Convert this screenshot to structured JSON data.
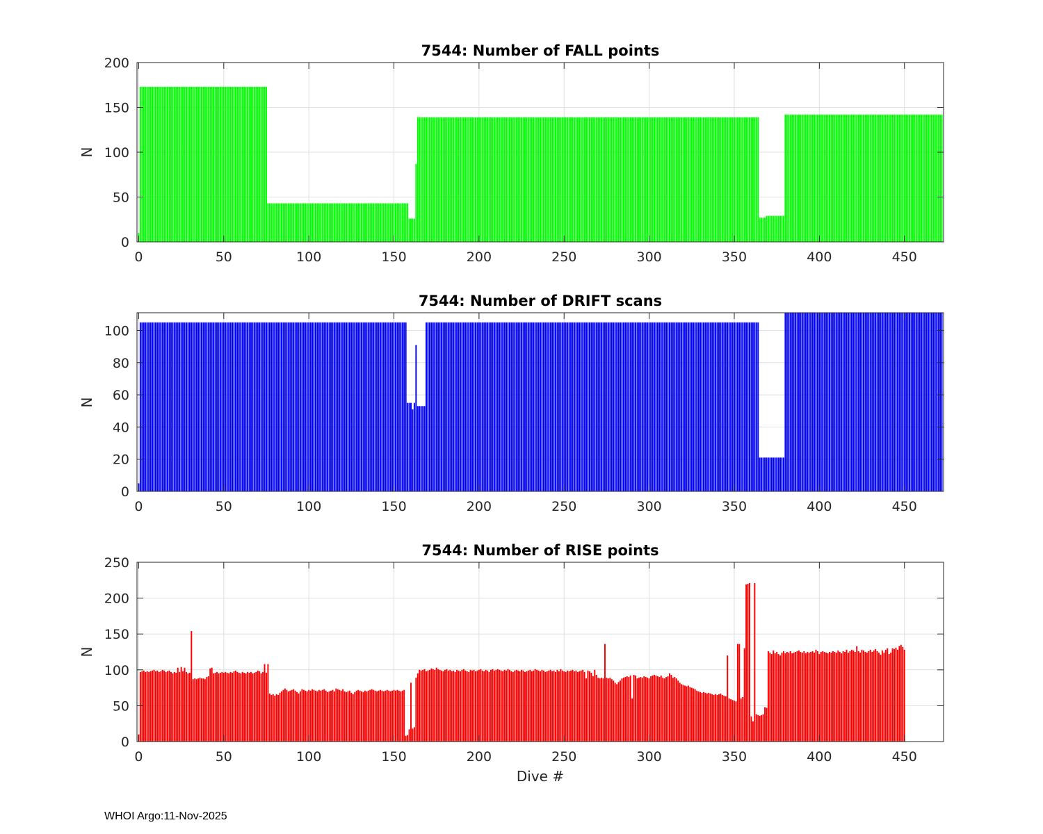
{
  "figure": {
    "footer": "WHOI Argo:11-Nov-2025"
  },
  "chart_data": [
    {
      "type": "bar",
      "title": "7544: Number of FALL points",
      "xlabel": "",
      "ylabel": "N",
      "xlim": [
        -1,
        473
      ],
      "ylim": [
        0,
        200
      ],
      "xticks": [
        0,
        50,
        100,
        150,
        200,
        250,
        300,
        350,
        400,
        450
      ],
      "yticks": [
        0,
        50,
        100,
        150,
        200
      ],
      "color": "#00ff00",
      "bar_width": 0.8,
      "segments": [
        {
          "from": 0,
          "to": 0,
          "value": 10
        },
        {
          "from": 1,
          "to": 75,
          "value": 173
        },
        {
          "from": 76,
          "to": 158,
          "value": 43
        },
        {
          "from": 159,
          "to": 162,
          "value": 26
        },
        {
          "from": 163,
          "to": 163,
          "value": 87
        },
        {
          "from": 164,
          "to": 364,
          "value": 139
        },
        {
          "from": 365,
          "to": 368,
          "value": 27
        },
        {
          "from": 369,
          "to": 379,
          "value": 29
        },
        {
          "from": 380,
          "to": 472,
          "value": 142
        }
      ]
    },
    {
      "type": "bar",
      "title": "7544: Number of DRIFT scans",
      "xlabel": "",
      "ylabel": "N",
      "xlim": [
        -1,
        473
      ],
      "ylim": [
        0,
        111
      ],
      "xticks": [
        0,
        50,
        100,
        150,
        200,
        250,
        300,
        350,
        400,
        450
      ],
      "yticks": [
        0,
        20,
        40,
        60,
        80,
        100
      ],
      "color": "#0000ff",
      "bar_width": 0.8,
      "segments": [
        {
          "from": 0,
          "to": 0,
          "value": 5
        },
        {
          "from": 1,
          "to": 157,
          "value": 105
        },
        {
          "from": 158,
          "to": 160,
          "value": 55
        },
        {
          "from": 161,
          "to": 161,
          "value": 51
        },
        {
          "from": 162,
          "to": 162,
          "value": 55
        },
        {
          "from": 163,
          "to": 163,
          "value": 91
        },
        {
          "from": 164,
          "to": 168,
          "value": 53
        },
        {
          "from": 169,
          "to": 364,
          "value": 105
        },
        {
          "from": 365,
          "to": 379,
          "value": 21
        },
        {
          "from": 380,
          "to": 472,
          "value": 111
        }
      ]
    },
    {
      "type": "bar",
      "title": "7544: Number of RISE points",
      "xlabel": "Dive #",
      "ylabel": "N",
      "xlim": [
        -1,
        473
      ],
      "ylim": [
        0,
        250
      ],
      "xticks": [
        0,
        50,
        100,
        150,
        200,
        250,
        300,
        350,
        400,
        450
      ],
      "yticks": [
        0,
        50,
        100,
        150,
        200,
        250
      ],
      "color": "#ff0000",
      "bar_width": 0.8,
      "values": [
        10,
        97,
        98,
        99,
        97,
        98,
        97,
        98,
        99,
        100,
        98,
        99,
        97,
        98,
        100,
        99,
        97,
        98,
        99,
        97,
        95,
        97,
        96,
        103,
        97,
        104,
        98,
        103,
        97,
        95,
        96,
        154,
        87,
        88,
        87,
        88,
        89,
        88,
        88,
        87,
        90,
        91,
        102,
        103,
        95,
        96,
        97,
        95,
        96,
        97,
        96,
        97,
        96,
        95,
        97,
        96,
        98,
        99,
        97,
        96,
        95,
        97,
        96,
        95,
        97,
        96,
        97,
        95,
        96,
        97,
        99,
        98,
        95,
        97,
        108,
        96,
        108,
        67,
        65,
        66,
        64,
        66,
        65,
        68,
        70,
        72,
        74,
        72,
        70,
        71,
        72,
        73,
        71,
        69,
        67,
        70,
        73,
        72,
        71,
        70,
        72,
        71,
        73,
        72,
        71,
        70,
        72,
        71,
        72,
        73,
        71,
        69,
        70,
        71,
        72,
        70,
        74,
        73,
        72,
        71,
        73,
        70,
        69,
        70,
        71,
        68,
        66,
        69,
        71,
        72,
        71,
        70,
        69,
        71,
        70,
        71,
        72,
        73,
        72,
        71,
        70,
        71,
        72,
        71,
        70,
        71,
        72,
        71,
        70,
        71,
        72,
        71,
        72,
        71,
        70,
        71,
        72,
        8,
        9,
        17,
        82,
        18,
        20,
        89,
        95,
        100,
        99,
        100,
        101,
        98,
        99,
        100,
        102,
        101,
        100,
        103,
        101,
        100,
        99,
        98,
        100,
        101,
        99,
        100,
        98,
        99,
        97,
        100,
        99,
        98,
        100,
        101,
        99,
        98,
        97,
        100,
        99,
        100,
        98,
        99,
        100,
        101,
        99,
        98,
        100,
        99,
        97,
        100,
        101,
        99,
        100,
        101,
        100,
        99,
        98,
        100,
        99,
        101,
        100,
        98,
        97,
        99,
        100,
        99,
        98,
        100,
        99,
        97,
        98,
        99,
        100,
        98,
        99,
        101,
        100,
        99,
        98,
        100,
        99,
        97,
        98,
        99,
        100,
        98,
        99,
        97,
        100,
        98,
        101,
        99,
        98,
        97,
        99,
        98,
        99,
        100,
        98,
        99,
        97,
        98,
        99,
        100,
        97,
        88,
        99,
        98,
        96,
        91,
        100,
        93,
        89,
        88,
        89,
        88,
        136,
        89,
        88,
        89,
        87,
        85,
        82,
        80,
        83,
        85,
        88,
        89,
        90,
        91,
        90,
        92,
        60,
        93,
        92,
        88,
        89,
        90,
        89,
        91,
        90,
        89,
        88,
        91,
        92,
        93,
        92,
        91,
        90,
        92,
        89,
        88,
        90,
        91,
        95,
        93,
        89,
        90,
        88,
        85,
        82,
        80,
        79,
        78,
        77,
        78,
        76,
        75,
        74,
        73,
        71,
        70,
        69,
        68,
        69,
        68,
        67,
        68,
        67,
        66,
        65,
        66,
        65,
        66,
        67,
        65,
        64,
        63,
        120,
        60,
        59,
        58,
        57,
        56,
        136,
        136,
        60,
        62,
        130,
        219,
        220,
        221,
        35,
        28,
        221,
        38,
        37,
        36,
        37,
        38,
        48,
        47,
        126,
        124,
        122,
        127,
        123,
        125,
        122,
        120,
        124,
        126,
        123,
        125,
        124,
        126,
        123,
        124,
        125,
        126,
        127,
        125,
        124,
        126,
        123,
        125,
        124,
        125,
        126,
        124,
        128,
        126,
        122,
        125,
        126,
        125,
        124,
        123,
        125,
        124,
        126,
        125,
        124,
        127,
        125,
        123,
        126,
        125,
        128,
        124,
        126,
        128,
        127,
        125,
        133,
        126,
        124,
        128,
        127,
        125,
        124,
        126,
        128,
        125,
        127,
        129,
        126,
        124,
        121,
        127,
        124,
        128,
        130,
        122,
        124,
        130,
        129,
        131,
        128,
        133,
        135,
        132,
        128
      ]
    }
  ]
}
